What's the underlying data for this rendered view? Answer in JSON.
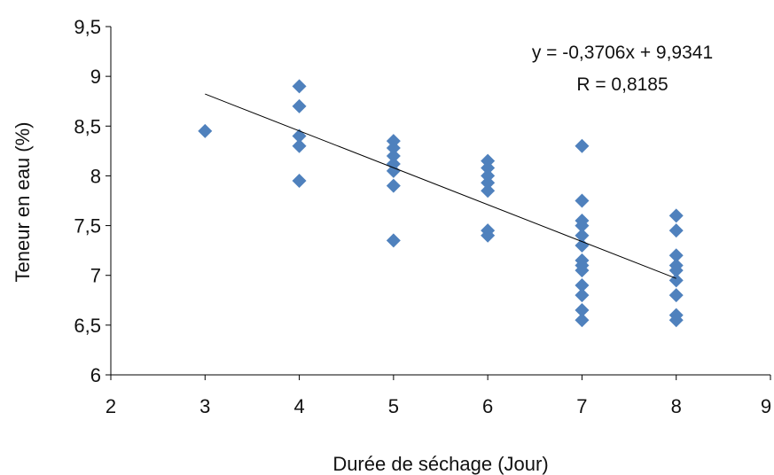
{
  "chart_data": {
    "type": "scatter",
    "title": "",
    "xlabel": "Durée de séchage (Jour)",
    "ylabel": "Teneur en eau (%)",
    "xlim": [
      2,
      9
    ],
    "ylim": [
      6,
      9.5
    ],
    "x_ticks": [
      2,
      3,
      4,
      5,
      6,
      7,
      8,
      9
    ],
    "y_ticks": [
      6,
      6.5,
      7,
      7.5,
      8,
      8.5,
      9,
      9.5
    ],
    "x_tick_labels": [
      "2",
      "3",
      "4",
      "5",
      "6",
      "7",
      "8",
      "9"
    ],
    "y_tick_labels": [
      "6",
      "6,5",
      "7",
      "7,5",
      "8",
      "8,5",
      "9",
      "9,5"
    ],
    "grid": false,
    "marker": "diamond",
    "marker_color": "#4F81BD",
    "series": [
      {
        "points": [
          [
            3,
            8.45
          ],
          [
            4,
            8.9
          ],
          [
            4,
            8.7
          ],
          [
            4,
            8.4
          ],
          [
            4,
            8.3
          ],
          [
            4,
            7.95
          ],
          [
            5,
            8.35
          ],
          [
            5,
            8.28
          ],
          [
            5,
            8.2
          ],
          [
            5,
            8.12
          ],
          [
            5,
            8.05
          ],
          [
            5,
            7.9
          ],
          [
            5,
            7.35
          ],
          [
            6,
            8.15
          ],
          [
            6,
            8.08
          ],
          [
            6,
            8.0
          ],
          [
            6,
            7.93
          ],
          [
            6,
            7.85
          ],
          [
            6,
            7.45
          ],
          [
            6,
            7.4
          ],
          [
            7,
            8.3
          ],
          [
            7,
            7.75
          ],
          [
            7,
            7.55
          ],
          [
            7,
            7.5
          ],
          [
            7,
            7.4
          ],
          [
            7,
            7.3
          ],
          [
            7,
            7.15
          ],
          [
            7,
            7.1
          ],
          [
            7,
            7.05
          ],
          [
            7,
            6.9
          ],
          [
            7,
            6.8
          ],
          [
            7,
            6.65
          ],
          [
            7,
            6.55
          ],
          [
            8,
            7.6
          ],
          [
            8,
            7.45
          ],
          [
            8,
            7.2
          ],
          [
            8,
            7.1
          ],
          [
            8,
            7.05
          ],
          [
            8,
            6.95
          ],
          [
            8,
            6.8
          ],
          [
            8,
            6.6
          ],
          [
            8,
            6.55
          ]
        ]
      }
    ],
    "trendline": {
      "slope": -0.3706,
      "intercept": 9.9341,
      "x_range": [
        3,
        8
      ],
      "color": "#000000"
    },
    "annotations": {
      "equation": "y = -0,3706x + 9,9341",
      "r_value": "R = 0,8185"
    }
  }
}
